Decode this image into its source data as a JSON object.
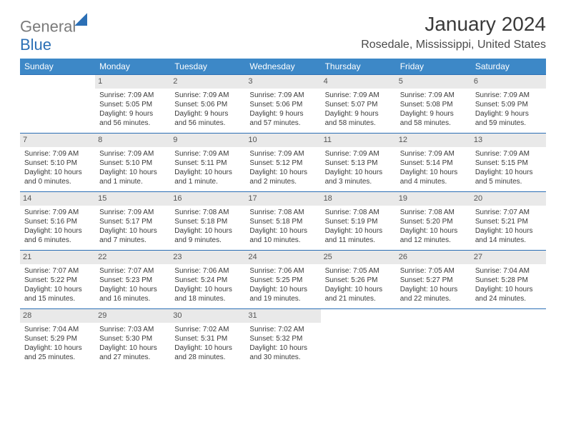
{
  "brand": {
    "part1": "General",
    "part2": "Blue"
  },
  "title": "January 2024",
  "location": "Rosedale, Mississippi, United States",
  "colors": {
    "header_bg": "#3d88c7",
    "header_text": "#ffffff",
    "rule": "#2b6fb5",
    "daynum_bg": "#e9e9e9",
    "text": "#3a3a3a",
    "brand_blue": "#2b6fb5",
    "brand_gray": "#7a7a7a"
  },
  "weekdays": [
    "Sunday",
    "Monday",
    "Tuesday",
    "Wednesday",
    "Thursday",
    "Friday",
    "Saturday"
  ],
  "weeks": [
    [
      null,
      {
        "n": "1",
        "sr": "Sunrise: 7:09 AM",
        "ss": "Sunset: 5:05 PM",
        "d1": "Daylight: 9 hours",
        "d2": "and 56 minutes."
      },
      {
        "n": "2",
        "sr": "Sunrise: 7:09 AM",
        "ss": "Sunset: 5:06 PM",
        "d1": "Daylight: 9 hours",
        "d2": "and 56 minutes."
      },
      {
        "n": "3",
        "sr": "Sunrise: 7:09 AM",
        "ss": "Sunset: 5:06 PM",
        "d1": "Daylight: 9 hours",
        "d2": "and 57 minutes."
      },
      {
        "n": "4",
        "sr": "Sunrise: 7:09 AM",
        "ss": "Sunset: 5:07 PM",
        "d1": "Daylight: 9 hours",
        "d2": "and 58 minutes."
      },
      {
        "n": "5",
        "sr": "Sunrise: 7:09 AM",
        "ss": "Sunset: 5:08 PM",
        "d1": "Daylight: 9 hours",
        "d2": "and 58 minutes."
      },
      {
        "n": "6",
        "sr": "Sunrise: 7:09 AM",
        "ss": "Sunset: 5:09 PM",
        "d1": "Daylight: 9 hours",
        "d2": "and 59 minutes."
      }
    ],
    [
      {
        "n": "7",
        "sr": "Sunrise: 7:09 AM",
        "ss": "Sunset: 5:10 PM",
        "d1": "Daylight: 10 hours",
        "d2": "and 0 minutes."
      },
      {
        "n": "8",
        "sr": "Sunrise: 7:09 AM",
        "ss": "Sunset: 5:10 PM",
        "d1": "Daylight: 10 hours",
        "d2": "and 1 minute."
      },
      {
        "n": "9",
        "sr": "Sunrise: 7:09 AM",
        "ss": "Sunset: 5:11 PM",
        "d1": "Daylight: 10 hours",
        "d2": "and 1 minute."
      },
      {
        "n": "10",
        "sr": "Sunrise: 7:09 AM",
        "ss": "Sunset: 5:12 PM",
        "d1": "Daylight: 10 hours",
        "d2": "and 2 minutes."
      },
      {
        "n": "11",
        "sr": "Sunrise: 7:09 AM",
        "ss": "Sunset: 5:13 PM",
        "d1": "Daylight: 10 hours",
        "d2": "and 3 minutes."
      },
      {
        "n": "12",
        "sr": "Sunrise: 7:09 AM",
        "ss": "Sunset: 5:14 PM",
        "d1": "Daylight: 10 hours",
        "d2": "and 4 minutes."
      },
      {
        "n": "13",
        "sr": "Sunrise: 7:09 AM",
        "ss": "Sunset: 5:15 PM",
        "d1": "Daylight: 10 hours",
        "d2": "and 5 minutes."
      }
    ],
    [
      {
        "n": "14",
        "sr": "Sunrise: 7:09 AM",
        "ss": "Sunset: 5:16 PM",
        "d1": "Daylight: 10 hours",
        "d2": "and 6 minutes."
      },
      {
        "n": "15",
        "sr": "Sunrise: 7:09 AM",
        "ss": "Sunset: 5:17 PM",
        "d1": "Daylight: 10 hours",
        "d2": "and 7 minutes."
      },
      {
        "n": "16",
        "sr": "Sunrise: 7:08 AM",
        "ss": "Sunset: 5:18 PM",
        "d1": "Daylight: 10 hours",
        "d2": "and 9 minutes."
      },
      {
        "n": "17",
        "sr": "Sunrise: 7:08 AM",
        "ss": "Sunset: 5:18 PM",
        "d1": "Daylight: 10 hours",
        "d2": "and 10 minutes."
      },
      {
        "n": "18",
        "sr": "Sunrise: 7:08 AM",
        "ss": "Sunset: 5:19 PM",
        "d1": "Daylight: 10 hours",
        "d2": "and 11 minutes."
      },
      {
        "n": "19",
        "sr": "Sunrise: 7:08 AM",
        "ss": "Sunset: 5:20 PM",
        "d1": "Daylight: 10 hours",
        "d2": "and 12 minutes."
      },
      {
        "n": "20",
        "sr": "Sunrise: 7:07 AM",
        "ss": "Sunset: 5:21 PM",
        "d1": "Daylight: 10 hours",
        "d2": "and 14 minutes."
      }
    ],
    [
      {
        "n": "21",
        "sr": "Sunrise: 7:07 AM",
        "ss": "Sunset: 5:22 PM",
        "d1": "Daylight: 10 hours",
        "d2": "and 15 minutes."
      },
      {
        "n": "22",
        "sr": "Sunrise: 7:07 AM",
        "ss": "Sunset: 5:23 PM",
        "d1": "Daylight: 10 hours",
        "d2": "and 16 minutes."
      },
      {
        "n": "23",
        "sr": "Sunrise: 7:06 AM",
        "ss": "Sunset: 5:24 PM",
        "d1": "Daylight: 10 hours",
        "d2": "and 18 minutes."
      },
      {
        "n": "24",
        "sr": "Sunrise: 7:06 AM",
        "ss": "Sunset: 5:25 PM",
        "d1": "Daylight: 10 hours",
        "d2": "and 19 minutes."
      },
      {
        "n": "25",
        "sr": "Sunrise: 7:05 AM",
        "ss": "Sunset: 5:26 PM",
        "d1": "Daylight: 10 hours",
        "d2": "and 21 minutes."
      },
      {
        "n": "26",
        "sr": "Sunrise: 7:05 AM",
        "ss": "Sunset: 5:27 PM",
        "d1": "Daylight: 10 hours",
        "d2": "and 22 minutes."
      },
      {
        "n": "27",
        "sr": "Sunrise: 7:04 AM",
        "ss": "Sunset: 5:28 PM",
        "d1": "Daylight: 10 hours",
        "d2": "and 24 minutes."
      }
    ],
    [
      {
        "n": "28",
        "sr": "Sunrise: 7:04 AM",
        "ss": "Sunset: 5:29 PM",
        "d1": "Daylight: 10 hours",
        "d2": "and 25 minutes."
      },
      {
        "n": "29",
        "sr": "Sunrise: 7:03 AM",
        "ss": "Sunset: 5:30 PM",
        "d1": "Daylight: 10 hours",
        "d2": "and 27 minutes."
      },
      {
        "n": "30",
        "sr": "Sunrise: 7:02 AM",
        "ss": "Sunset: 5:31 PM",
        "d1": "Daylight: 10 hours",
        "d2": "and 28 minutes."
      },
      {
        "n": "31",
        "sr": "Sunrise: 7:02 AM",
        "ss": "Sunset: 5:32 PM",
        "d1": "Daylight: 10 hours",
        "d2": "and 30 minutes."
      },
      null,
      null,
      null
    ]
  ]
}
